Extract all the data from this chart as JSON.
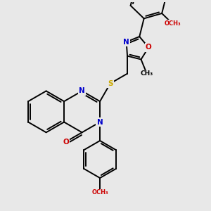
{
  "bg_color": "#e8e8e8",
  "bond_color": "#000000",
  "bond_width": 1.4,
  "atom_colors": {
    "N": "#0000cc",
    "O": "#cc0000",
    "S": "#ccaa00",
    "C": "#000000"
  },
  "figsize": [
    3.0,
    3.0
  ],
  "dpi": 100,
  "xlim": [
    0,
    10
  ],
  "ylim": [
    0,
    10
  ]
}
